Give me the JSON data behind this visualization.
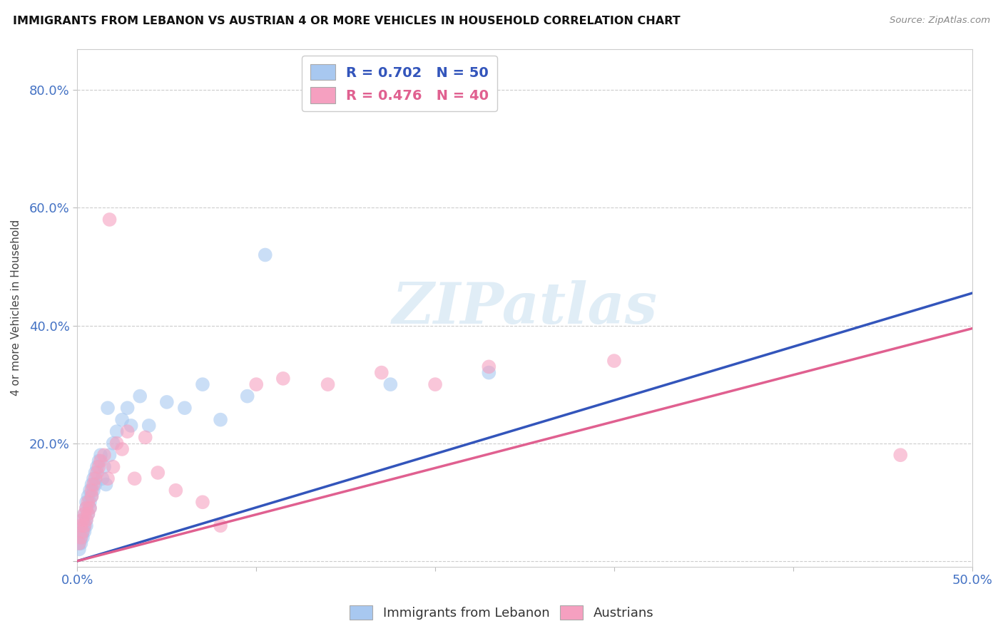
{
  "title": "IMMIGRANTS FROM LEBANON VS AUSTRIAN 4 OR MORE VEHICLES IN HOUSEHOLD CORRELATION CHART",
  "source": "Source: ZipAtlas.com",
  "ylabel": "4 or more Vehicles in Household",
  "xmin": 0.0,
  "xmax": 0.5,
  "ymin": -0.01,
  "ymax": 0.87,
  "R_blue": 0.702,
  "N_blue": 50,
  "R_pink": 0.476,
  "N_pink": 40,
  "blue_color": "#a8c8f0",
  "pink_color": "#f5a0c0",
  "line_blue": "#3355bb",
  "line_pink": "#e06090",
  "legend_blue_label": "Immigrants from Lebanon",
  "legend_pink_label": "Austrians",
  "blue_line_x0": 0.0,
  "blue_line_y0": 0.0,
  "blue_line_x1": 0.5,
  "blue_line_y1": 0.455,
  "pink_line_x0": 0.0,
  "pink_line_y0": 0.0,
  "pink_line_x1": 0.5,
  "pink_line_y1": 0.395,
  "blue_scatter_x": [
    0.001,
    0.001,
    0.002,
    0.002,
    0.002,
    0.003,
    0.003,
    0.003,
    0.003,
    0.004,
    0.004,
    0.004,
    0.005,
    0.005,
    0.005,
    0.005,
    0.006,
    0.006,
    0.007,
    0.007,
    0.007,
    0.008,
    0.008,
    0.009,
    0.009,
    0.01,
    0.01,
    0.011,
    0.012,
    0.013,
    0.014,
    0.015,
    0.016,
    0.017,
    0.018,
    0.02,
    0.022,
    0.025,
    0.028,
    0.03,
    0.035,
    0.04,
    0.05,
    0.06,
    0.07,
    0.08,
    0.095,
    0.105,
    0.175,
    0.23
  ],
  "blue_scatter_y": [
    0.02,
    0.03,
    0.04,
    0.05,
    0.03,
    0.05,
    0.06,
    0.04,
    0.07,
    0.05,
    0.06,
    0.08,
    0.07,
    0.09,
    0.06,
    0.1,
    0.08,
    0.11,
    0.09,
    0.12,
    0.1,
    0.11,
    0.13,
    0.12,
    0.14,
    0.13,
    0.15,
    0.16,
    0.17,
    0.18,
    0.14,
    0.16,
    0.13,
    0.26,
    0.18,
    0.2,
    0.22,
    0.24,
    0.26,
    0.23,
    0.28,
    0.23,
    0.27,
    0.26,
    0.3,
    0.24,
    0.28,
    0.52,
    0.3,
    0.32
  ],
  "pink_scatter_x": [
    0.001,
    0.002,
    0.002,
    0.003,
    0.003,
    0.004,
    0.004,
    0.005,
    0.005,
    0.006,
    0.006,
    0.007,
    0.008,
    0.008,
    0.009,
    0.01,
    0.011,
    0.012,
    0.013,
    0.015,
    0.017,
    0.018,
    0.02,
    0.022,
    0.025,
    0.028,
    0.032,
    0.038,
    0.045,
    0.055,
    0.07,
    0.08,
    0.1,
    0.115,
    0.14,
    0.17,
    0.2,
    0.23,
    0.3,
    0.46
  ],
  "pink_scatter_y": [
    0.03,
    0.04,
    0.06,
    0.05,
    0.07,
    0.06,
    0.08,
    0.07,
    0.09,
    0.08,
    0.1,
    0.09,
    0.11,
    0.12,
    0.13,
    0.14,
    0.15,
    0.16,
    0.17,
    0.18,
    0.14,
    0.58,
    0.16,
    0.2,
    0.19,
    0.22,
    0.14,
    0.21,
    0.15,
    0.12,
    0.1,
    0.06,
    0.3,
    0.31,
    0.3,
    0.32,
    0.3,
    0.33,
    0.34,
    0.18
  ]
}
